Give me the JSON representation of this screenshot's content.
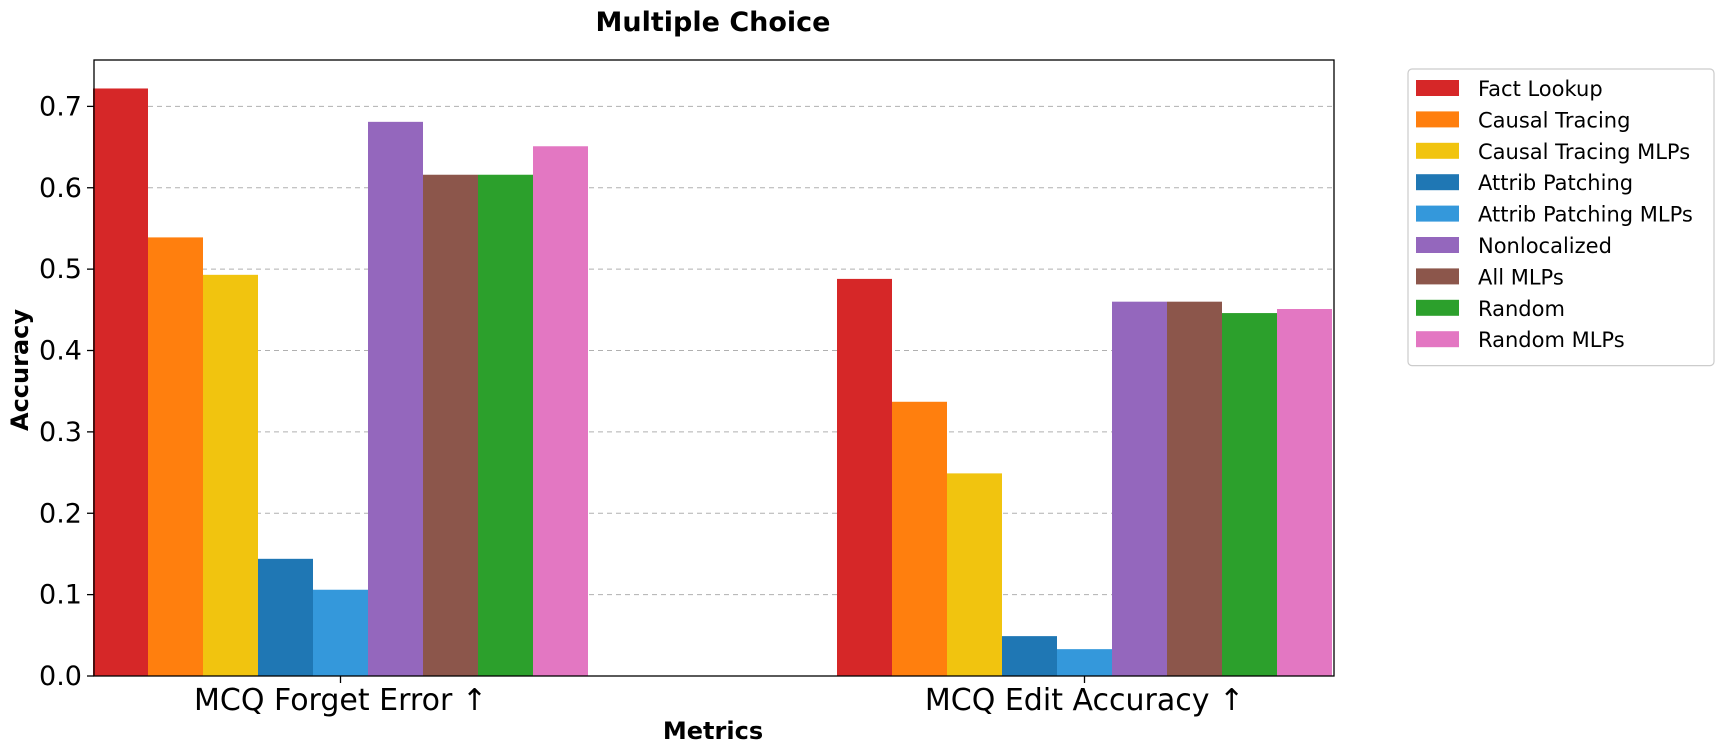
{
  "chart_data": {
    "type": "bar",
    "title": "Multiple Choice",
    "xlabel": "Metrics",
    "ylabel": "Accuracy",
    "ylim": [
      0,
      0.757
    ],
    "yticks": [
      "0.0",
      "0.1",
      "0.2",
      "0.3",
      "0.4",
      "0.5",
      "0.6",
      "0.7"
    ],
    "grid": true,
    "legend_position": "outside-top-right",
    "categories": [
      "MCQ Forget Error ↑",
      "MCQ Edit Accuracy ↑"
    ],
    "series": [
      {
        "name": "Fact Lookup",
        "color": "#d62728",
        "values": [
          0.722,
          0.488
        ]
      },
      {
        "name": "Causal Tracing",
        "color": "#ff7f0e",
        "values": [
          0.539,
          0.337
        ]
      },
      {
        "name": "Causal Tracing MLPs",
        "color": "#f1c40f",
        "values": [
          0.493,
          0.249
        ]
      },
      {
        "name": "Attrib Patching",
        "color": "#1f77b4",
        "values": [
          0.144,
          0.049
        ]
      },
      {
        "name": "Attrib Patching MLPs",
        "color": "#3498db",
        "values": [
          0.106,
          0.033
        ]
      },
      {
        "name": "Nonlocalized",
        "color": "#9467bd",
        "values": [
          0.681,
          0.46
        ]
      },
      {
        "name": "All MLPs",
        "color": "#8c564b",
        "values": [
          0.616,
          0.46
        ]
      },
      {
        "name": "Random",
        "color": "#2ca02c",
        "values": [
          0.616,
          0.446
        ]
      },
      {
        "name": "Random MLPs",
        "color": "#e377c2",
        "values": [
          0.651,
          0.451
        ]
      }
    ]
  }
}
